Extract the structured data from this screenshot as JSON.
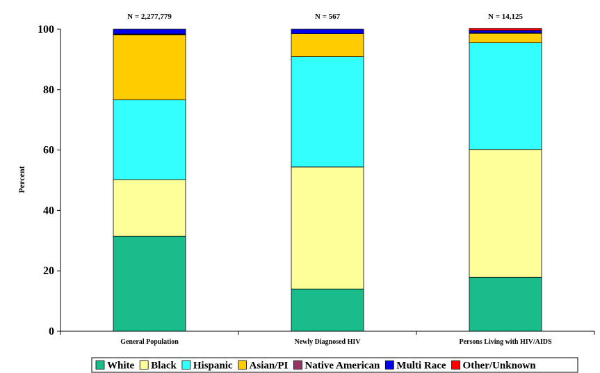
{
  "chart_data": {
    "type": "bar",
    "stacked": true,
    "title": "",
    "xlabel": "",
    "ylabel": "Percent",
    "ylim": [
      0,
      100
    ],
    "yticks": [
      0,
      20,
      40,
      60,
      80,
      100
    ],
    "categories": [
      "General Population",
      "Newly Diagnosed HIV",
      "Persons Living with HIV/AIDS"
    ],
    "annotations": [
      "N = 2,277,779",
      "N = 567",
      "N = 14,125"
    ],
    "series": [
      {
        "name": "White",
        "color": "#1abc8c",
        "values": [
          31.5,
          14.0,
          17.9
        ]
      },
      {
        "name": "Black",
        "color": "#ffff99",
        "values": [
          18.7,
          40.4,
          42.3
        ]
      },
      {
        "name": "Hispanic",
        "color": "#33ffff",
        "values": [
          26.4,
          36.5,
          35.3
        ]
      },
      {
        "name": "Asian/PI",
        "color": "#ffcc00",
        "values": [
          21.6,
          7.6,
          3.1
        ]
      },
      {
        "name": "Native American",
        "color": "#993366",
        "values": [
          0.2,
          0.0,
          0.2
        ]
      },
      {
        "name": "Multi Race",
        "color": "#0000ee",
        "values": [
          1.6,
          1.5,
          0.8
        ]
      },
      {
        "name": "Other/Unknown",
        "color": "#ff0000",
        "values": [
          0.0,
          0.0,
          0.7
        ]
      }
    ],
    "legend_position": "bottom",
    "grid": false
  }
}
